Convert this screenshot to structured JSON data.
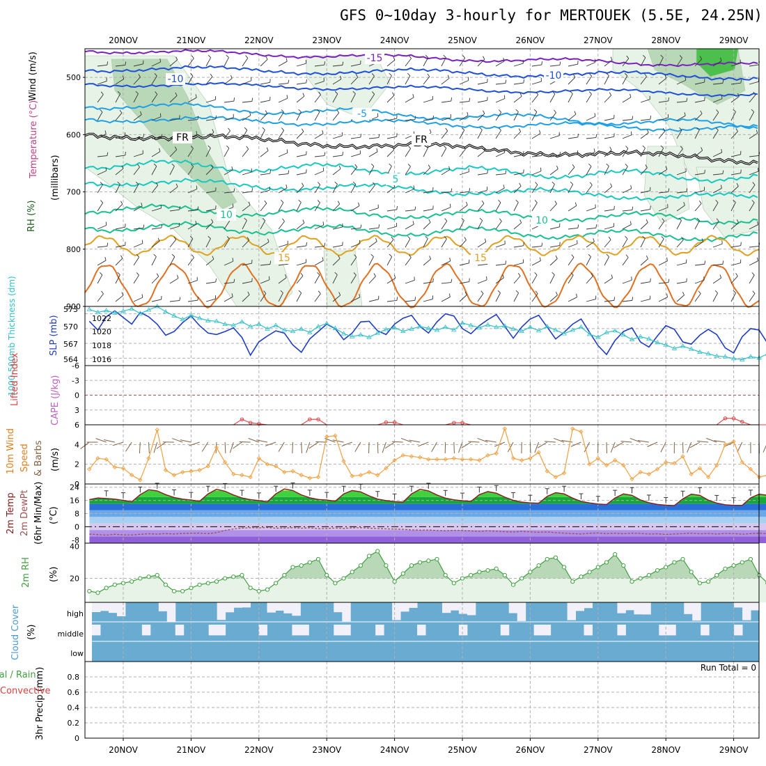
{
  "title": "GFS 0~10day 3-hourly for MERTOUEK (5.5E, 24.25N)",
  "dates": [
    "20NOV",
    "21NOV",
    "22NOV",
    "23NOV",
    "24NOV",
    "25NOV",
    "26NOV",
    "27NOV",
    "28NOV",
    "29NOV"
  ],
  "colors": {
    "grid": "#b0b0b0",
    "temp_cold": "#7a1fc0",
    "temp_blue": "#1e4fd8",
    "temp_lblue": "#1ea0e6",
    "temp_cyan": "#18c8c0",
    "temp_green": "#18c090",
    "temp_yellow": "#e0a020",
    "temp_orange": "#e07020",
    "freezing": "#000000",
    "rh_light": "#e6f3e6",
    "rh_mid": "#b8d8b8",
    "rh_dark": "#4cbf4c",
    "slp": "#1e3cc8",
    "thickness": "#30c0c8",
    "lifted_index": "#e04040",
    "wind_speed": "#f0a040",
    "barbs": "#806040",
    "dewpoint": "#a05050",
    "rh2m": "#40a040",
    "cloud": "#6aabd2",
    "cloud_empty": "#f2f0f8"
  },
  "panels": {
    "upper": {
      "axis_label_rh": "RH (%)",
      "axis_label_temp": "Temperature (°C)",
      "axis_label_wind": "Wind (m/s)",
      "axis_label_mb": "(millibars)",
      "ticks": [
        "500",
        "600",
        "700",
        "800",
        "900"
      ],
      "contour_labels": [
        "-15",
        "-10",
        "-10",
        "-5",
        "FR",
        "FR",
        "5",
        "10",
        "10",
        "15",
        "15"
      ]
    },
    "slp": {
      "label_thickness": "1000-500mb Thickness (dm)",
      "label_slp": "SLP (mb)",
      "left_ticks": [
        "573",
        "570",
        "567",
        "564"
      ],
      "right_ticks": [
        "1022",
        "1020",
        "1018",
        "1016"
      ]
    },
    "cape": {
      "label_li": "Lifted Index",
      "label_cape": "CAPE (J/kg)",
      "ticks": [
        "-6",
        "-3",
        "0",
        "3",
        "6"
      ]
    },
    "wind10": {
      "label_1": "10m Wind",
      "label_2": "Speed",
      "label_3": "& Barbs",
      "label_unit": "(m/s)",
      "ticks": [
        "4",
        "2",
        "0"
      ]
    },
    "temp2m": {
      "label_1": "2m Temp",
      "label_2": "2m DewPt",
      "label_3": "(6hr Min/Max)",
      "label_unit": "(°C)",
      "ticks": [
        "24",
        "16",
        "8",
        "0",
        "-8"
      ]
    },
    "rh2m": {
      "label_1": "2m RH",
      "label_unit": "(%)",
      "ticks": [
        "40",
        "20"
      ]
    },
    "cloud": {
      "label_1": "Cloud Cover",
      "label_unit": "(%)",
      "ticks": [
        "high",
        "middle",
        "low"
      ]
    },
    "precip": {
      "label_1": "Total / Rain",
      "label_2": "Convective",
      "label_3": "3hr Precip (mm)",
      "ticks": [
        "0.8",
        "0.6",
        "0.4",
        "0.2",
        "0"
      ],
      "run_total": "Run Total = 0"
    }
  },
  "chart_data": [
    {
      "type": "line",
      "name": "sea level pressure",
      "x": "3-hourly steps, 19NOV 12Z to 29NOV 06Z",
      "ylabel": "SLP (mb)",
      "ylim": [
        1015,
        1023
      ],
      "values": [
        1021,
        1019.8,
        1021.6,
        1022.4,
        1021.5,
        1020.6,
        1022.2,
        1021.6,
        1020.6,
        1019.1,
        1019.6,
        1020.8,
        1021.7,
        1020.4,
        1019.4,
        1019.2,
        1019.6,
        1020.1,
        1018.8,
        1016.4,
        1018.2,
        1019.0,
        1019.7,
        1019.4,
        1017.8,
        1016.8,
        1018.6,
        1019.6,
        1020.6,
        1020.0,
        1018.5,
        1019.4,
        1020.9,
        1021.0,
        1019.7,
        1019.2,
        1020.6,
        1021.4,
        1021.8,
        1020.3,
        1019.4,
        1020.9,
        1022.0,
        1021.7,
        1020.0,
        1019.3,
        1020.4,
        1021.2,
        1021.9,
        1020.3,
        1018.7,
        1020.2,
        1021.3,
        1021.8,
        1020.2,
        1018.6,
        1019.5,
        1020.6,
        1021.3,
        1019.5,
        1017.7,
        1016.5,
        1018.4,
        1019.6,
        1020.1,
        1018.2,
        1017.5,
        1019.0,
        1020.4,
        1019.9,
        1018.2,
        1017.9,
        1019.1,
        1019.9,
        1019.2,
        1017.4,
        1016.7,
        1018.9,
        1020.0,
        1019.8,
        1018.0,
        1017.6,
        1019.4,
        1021.6,
        1021.0
      ]
    },
    {
      "type": "line",
      "name": "1000-500mb thickness",
      "ylabel": "1000-500mb Thickness (dm)",
      "ylim": [
        563,
        573
      ],
      "values": [
        572.5,
        572.0,
        572.3,
        571.9,
        572.2,
        572.6,
        571.8,
        572.4,
        573.0,
        572.1,
        571.4,
        570.8,
        571.5,
        571.0,
        570.6,
        570.5,
        570.0,
        569.8,
        570.4,
        569.6,
        570.0,
        569.2,
        569.8,
        569.0,
        568.8,
        569.2,
        568.6,
        569.6,
        570.1,
        569.3,
        568.4,
        567.9,
        568.2,
        567.8,
        568.5,
        569.1,
        569.4,
        568.8,
        569.2,
        569.6,
        569.3,
        569.0,
        569.5,
        569.0,
        570.2,
        569.8,
        569.4,
        569.9,
        569.5,
        569.7,
        569.2,
        568.8,
        569.5,
        568.9,
        569.6,
        569.0,
        568.4,
        569.0,
        569.5,
        568.3,
        567.8,
        568.6,
        568.9,
        568.2,
        567.4,
        567.9,
        567.5,
        566.9,
        566.5,
        565.9,
        566.3,
        565.8,
        565.3,
        565.0,
        564.6,
        564.5,
        564.2,
        564.0,
        564.5,
        564.3,
        565.0,
        565.2,
        564.7,
        564.8,
        564.5,
        564.3,
        563.8
      ]
    },
    {
      "type": "line",
      "name": "10m wind speed",
      "ylabel": "m/s",
      "ylim": [
        0,
        6
      ],
      "values": [
        1.5,
        2.6,
        2.5,
        1.7,
        1.6,
        0.9,
        0.4,
        2.6,
        5.5,
        1.4,
        0.9,
        1.2,
        1.3,
        1.4,
        1.8,
        3.7,
        2.2,
        1.0,
        0.9,
        0.7,
        2.6,
        2.0,
        1.8,
        1.2,
        1.3,
        0.9,
        0.6,
        0.7,
        4.8,
        4.9,
        2.3,
        0.8,
        0.9,
        1.2,
        0.9,
        1.6,
        2.4,
        2.9,
        2.8,
        2.7,
        2.5,
        2.5,
        2.5,
        2.6,
        2.5,
        2.5,
        2.4,
        2.9,
        3.1,
        5.6,
        2.6,
        2.4,
        2.6,
        3.2,
        1.3,
        0.7,
        1.1,
        5.6,
        5.3,
        2.0,
        2.6,
        1.9,
        2.4,
        1.9,
        0.5,
        1.2,
        1.0,
        1.5,
        2.2,
        2.1,
        2.8,
        1.0,
        1.6,
        0.7,
        1.9,
        4.0,
        4.3,
        2.2,
        1.5,
        0.7,
        0.9,
        1.1,
        1.3,
        1.4,
        2.7,
        2.8,
        1.2,
        0.6,
        1.0,
        1.1,
        1.0
      ]
    },
    {
      "type": "area",
      "name": "2m temperature",
      "ylabel": "°C",
      "ylim": [
        -10,
        26
      ],
      "values": [
        16.5,
        17.5,
        17.2,
        16.8,
        16.0,
        15.2,
        19.5,
        22.5,
        21.8,
        19.5,
        17.8,
        16.8,
        16.2,
        15.5,
        20.0,
        22.8,
        21.6,
        19.3,
        17.5,
        16.5,
        15.9,
        15.2,
        20.0,
        23.0,
        22.0,
        19.4,
        17.6,
        16.6,
        16.2,
        15.6,
        20.0,
        22.0,
        21.2,
        18.8,
        16.8,
        15.9,
        15.3,
        15.0,
        20.0,
        22.8,
        21.8,
        19.3,
        17.4,
        16.4,
        15.8,
        15.4,
        19.5,
        21.4,
        20.4,
        18.0,
        16.1,
        15.0,
        14.5,
        14.3,
        18.5,
        20.7,
        20.0,
        17.4,
        15.4,
        14.5,
        13.8,
        13.5,
        17.5,
        20.0,
        19.1,
        16.3,
        14.6,
        13.6,
        13.1,
        12.9,
        17.0,
        19.8,
        19.1,
        16.2,
        14.4,
        13.4,
        13.0,
        13.0,
        17.6,
        19.8,
        19.1,
        16.4,
        14.6,
        13.6,
        13.0,
        12.7
      ]
    },
    {
      "type": "line",
      "name": "2m dewpoint",
      "ylabel": "°C",
      "ylim": [
        -10,
        26
      ],
      "values": [
        -4.5,
        -4.8,
        -5.1,
        -4.6,
        -4.9,
        -5.0,
        -4.6,
        -4.3,
        -4.5,
        -4.2,
        -4.4,
        -4.1,
        -4.0,
        -3.9,
        -4.2,
        -3.6,
        -2.2,
        -1.4,
        -0.8,
        -0.6,
        -0.7,
        -0.5,
        -0.9,
        -0.8,
        -0.6,
        -0.9,
        -0.7,
        -1.2,
        -1.0,
        -0.8,
        -1.0,
        -0.7,
        -0.6,
        -0.9,
        -1.1,
        -1.3,
        -1.4,
        -1.6,
        -1.9,
        -2.1,
        -2.0,
        -2.3,
        -2.4,
        -2.2,
        -2.3,
        -2.6,
        -2.8,
        -2.5,
        -2.7,
        -3.0,
        -3.2,
        -2.9,
        -3.1,
        -3.4,
        -3.2,
        -3.6,
        -3.9,
        -4.2,
        -4.4,
        -4.0,
        -3.8,
        -4.2,
        -4.0,
        -4.3,
        -3.9,
        -4.1,
        -4.4,
        -4.3,
        -4.7,
        -4.4,
        -4.2,
        -3.9,
        -4.3,
        -4.1,
        -4.4,
        -4.1,
        -4.2,
        -4.5,
        -4.2,
        -4.0,
        -4.3,
        -4.0,
        -3.9,
        -4.2,
        -4.4
      ]
    },
    {
      "type": "area",
      "name": "2m relative humidity",
      "ylabel": "%",
      "ylim": [
        5,
        42
      ],
      "values": [
        12,
        11,
        14,
        16,
        17,
        18,
        20,
        21,
        22,
        16,
        12,
        12,
        14,
        16,
        17,
        18,
        20,
        21,
        22,
        14,
        12,
        13,
        17,
        22,
        27,
        28,
        30,
        32,
        22,
        17,
        20,
        24,
        28,
        34,
        37,
        28,
        18,
        23,
        28,
        30,
        31,
        32,
        22,
        17,
        20,
        22,
        24,
        25,
        26,
        22,
        16,
        20,
        24,
        28,
        32,
        33,
        27,
        18,
        21,
        24,
        27,
        30,
        35,
        28,
        18,
        20,
        22,
        25,
        27,
        30,
        32,
        24,
        17,
        18,
        22,
        26,
        28,
        30,
        32,
        22,
        17,
        18,
        24,
        27,
        28,
        29,
        30,
        31
      ]
    },
    {
      "type": "line",
      "name": "lifted index",
      "ylabel": "Lifted Index",
      "ylim": [
        -6,
        6
      ],
      "values": [
        6,
        6,
        6,
        6,
        6,
        6,
        6,
        6,
        6,
        6,
        6,
        6,
        6,
        6,
        6,
        6,
        6,
        6,
        4.9,
        5.6,
        5.8,
        6,
        6,
        6,
        6,
        6,
        4.9,
        4.9,
        6,
        6,
        6,
        6,
        6,
        6,
        6,
        5.5,
        5.5,
        6,
        6,
        6,
        6,
        6,
        6,
        5.6,
        5.6,
        6,
        6,
        6,
        6,
        6,
        6,
        6,
        6,
        6,
        6,
        6,
        6,
        6,
        6,
        6,
        6,
        6,
        6,
        6,
        6,
        6,
        6,
        6,
        6,
        6,
        6,
        6,
        6,
        6,
        6,
        4.7,
        4.7,
        5.4,
        6,
        6,
        6,
        6,
        6,
        5.6,
        5.6,
        6,
        6
      ]
    },
    {
      "type": "bar",
      "name": "3hr precipitation",
      "ylabel": "3hr Precip (mm)",
      "ylim": [
        0,
        1
      ],
      "values": []
    }
  ]
}
